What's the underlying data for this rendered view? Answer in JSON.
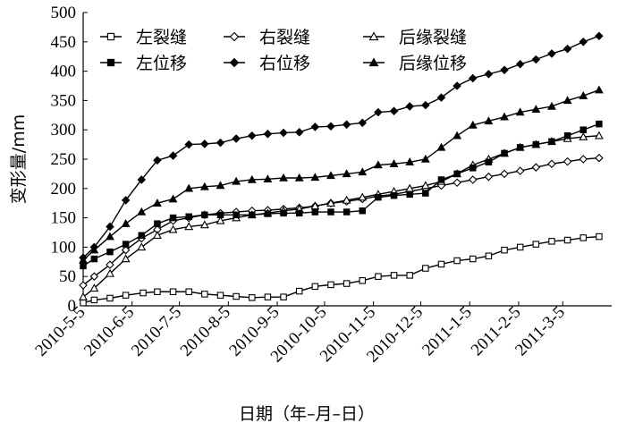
{
  "chart_data": {
    "type": "line",
    "xlabel": "日期（年–月–日）",
    "ylabel": "变形量/mm",
    "ylim": [
      0,
      500
    ],
    "yticks": [
      0,
      50,
      100,
      150,
      200,
      250,
      300,
      350,
      400,
      450,
      500
    ],
    "xlim": [
      "2010-05-05",
      "2011-04-05"
    ],
    "xticks": [
      "2010-5-5",
      "2010-6-5",
      "2010-7-5",
      "2010-8-5",
      "2010-9-5",
      "2010-10-5",
      "2010-11-5",
      "2010-12-5",
      "2011-1-5",
      "2011-2-5",
      "2011-3-5"
    ],
    "xtick_dates": [
      "2010-05-05",
      "2010-06-05",
      "2010-07-05",
      "2010-08-05",
      "2010-09-05",
      "2010-10-05",
      "2010-11-05",
      "2010-12-05",
      "2011-01-05",
      "2011-02-05",
      "2011-03-05"
    ],
    "legend_position": "top",
    "grid": false,
    "series": [
      {
        "name": "左裂缝",
        "marker": "square-open",
        "x": [
          "2010-05-05",
          "2010-05-12",
          "2010-05-22",
          "2010-06-01",
          "2010-06-12",
          "2010-06-21",
          "2010-07-01",
          "2010-07-11",
          "2010-07-21",
          "2010-07-31",
          "2010-08-10",
          "2010-08-20",
          "2010-08-30",
          "2010-09-09",
          "2010-09-19",
          "2010-09-29",
          "2010-10-09",
          "2010-10-19",
          "2010-10-29",
          "2010-11-08",
          "2010-11-18",
          "2010-11-28",
          "2010-12-08",
          "2010-12-18",
          "2010-12-28",
          "2011-01-07",
          "2011-01-17",
          "2011-01-27",
          "2011-02-06",
          "2011-02-16",
          "2011-02-26",
          "2011-03-08",
          "2011-03-18",
          "2011-03-28"
        ],
        "values": [
          5,
          10,
          13,
          18,
          22,
          24,
          24,
          24,
          20,
          18,
          16,
          14,
          15,
          15,
          25,
          33,
          36,
          38,
          43,
          50,
          52,
          52,
          64,
          71,
          77,
          80,
          85,
          95,
          100,
          105,
          110,
          112,
          116,
          118
        ]
      },
      {
        "name": "右裂缝",
        "marker": "diamond-open",
        "x": [
          "2010-05-05",
          "2010-05-12",
          "2010-05-22",
          "2010-06-01",
          "2010-06-11",
          "2010-06-21",
          "2010-07-01",
          "2010-07-11",
          "2010-07-21",
          "2010-07-31",
          "2010-08-10",
          "2010-08-20",
          "2010-08-30",
          "2010-09-09",
          "2010-09-19",
          "2010-09-29",
          "2010-10-09",
          "2010-10-19",
          "2010-10-29",
          "2010-11-08",
          "2010-11-18",
          "2010-11-28",
          "2010-12-08",
          "2010-12-18",
          "2010-12-28",
          "2011-01-07",
          "2011-01-17",
          "2011-01-27",
          "2011-02-06",
          "2011-02-16",
          "2011-02-26",
          "2011-03-08",
          "2011-03-18",
          "2011-03-28"
        ],
        "values": [
          35,
          50,
          70,
          95,
          115,
          130,
          145,
          150,
          155,
          158,
          160,
          162,
          163,
          165,
          167,
          170,
          175,
          178,
          182,
          187,
          190,
          195,
          200,
          205,
          210,
          215,
          220,
          225,
          230,
          236,
          242,
          246,
          250,
          252
        ]
      },
      {
        "name": "后缘裂缝",
        "marker": "triangle-open",
        "x": [
          "2010-05-05",
          "2010-05-12",
          "2010-05-22",
          "2010-06-01",
          "2010-06-11",
          "2010-06-21",
          "2010-07-01",
          "2010-07-11",
          "2010-07-21",
          "2010-07-31",
          "2010-08-10",
          "2010-08-20",
          "2010-08-30",
          "2010-09-09",
          "2010-09-19",
          "2010-09-29",
          "2010-10-09",
          "2010-10-19",
          "2010-10-29",
          "2010-11-08",
          "2010-11-18",
          "2010-11-28",
          "2010-12-08",
          "2010-12-18",
          "2010-12-28",
          "2011-01-07",
          "2011-01-17",
          "2011-01-27",
          "2011-02-06",
          "2011-02-16",
          "2011-02-26",
          "2011-03-08",
          "2011-03-18",
          "2011-03-28"
        ],
        "values": [
          15,
          30,
          55,
          80,
          100,
          120,
          130,
          135,
          138,
          145,
          150,
          155,
          158,
          162,
          165,
          170,
          175,
          180,
          185,
          190,
          195,
          200,
          205,
          212,
          225,
          240,
          250,
          260,
          270,
          275,
          280,
          285,
          288,
          290
        ]
      },
      {
        "name": "左位移",
        "marker": "square-filled",
        "x": [
          "2010-05-05",
          "2010-05-12",
          "2010-05-22",
          "2010-06-01",
          "2010-06-11",
          "2010-06-21",
          "2010-07-01",
          "2010-07-11",
          "2010-07-21",
          "2010-07-31",
          "2010-08-10",
          "2010-08-20",
          "2010-08-30",
          "2010-09-09",
          "2010-09-19",
          "2010-09-29",
          "2010-10-09",
          "2010-10-19",
          "2010-10-29",
          "2010-11-08",
          "2010-11-18",
          "2010-11-28",
          "2010-12-08",
          "2010-12-18",
          "2010-12-28",
          "2011-01-07",
          "2011-01-17",
          "2011-01-27",
          "2011-02-06",
          "2011-02-16",
          "2011-02-26",
          "2011-03-08",
          "2011-03-18",
          "2011-03-28"
        ],
        "values": [
          68,
          80,
          92,
          105,
          120,
          140,
          150,
          152,
          155,
          155,
          155,
          155,
          157,
          158,
          158,
          160,
          160,
          160,
          162,
          185,
          188,
          190,
          192,
          215,
          225,
          235,
          245,
          260,
          270,
          275,
          280,
          290,
          300,
          310
        ]
      },
      {
        "name": "右位移",
        "marker": "diamond-filled",
        "x": [
          "2010-05-05",
          "2010-05-12",
          "2010-05-22",
          "2010-06-01",
          "2010-06-11",
          "2010-06-21",
          "2010-07-01",
          "2010-07-11",
          "2010-07-21",
          "2010-07-31",
          "2010-08-10",
          "2010-08-20",
          "2010-08-30",
          "2010-09-09",
          "2010-09-19",
          "2010-09-29",
          "2010-10-09",
          "2010-10-19",
          "2010-10-29",
          "2010-11-08",
          "2010-11-18",
          "2010-11-28",
          "2010-12-08",
          "2010-12-18",
          "2010-12-28",
          "2011-01-07",
          "2011-01-17",
          "2011-01-27",
          "2011-02-06",
          "2011-02-16",
          "2011-02-26",
          "2011-03-08",
          "2011-03-18",
          "2011-03-28"
        ],
        "values": [
          82,
          100,
          135,
          180,
          215,
          248,
          256,
          275,
          276,
          278,
          285,
          290,
          293,
          295,
          296,
          305,
          306,
          309,
          312,
          330,
          332,
          340,
          342,
          355,
          375,
          388,
          395,
          402,
          412,
          420,
          430,
          438,
          450,
          460
        ]
      },
      {
        "name": "后缘位移",
        "marker": "triangle-filled",
        "x": [
          "2010-05-05",
          "2010-05-12",
          "2010-05-22",
          "2010-06-01",
          "2010-06-11",
          "2010-06-21",
          "2010-07-01",
          "2010-07-11",
          "2010-07-21",
          "2010-07-31",
          "2010-08-10",
          "2010-08-20",
          "2010-08-30",
          "2010-09-09",
          "2010-09-19",
          "2010-09-29",
          "2010-10-09",
          "2010-10-19",
          "2010-10-29",
          "2010-11-08",
          "2010-11-18",
          "2010-11-28",
          "2010-12-08",
          "2010-12-18",
          "2010-12-28",
          "2011-01-07",
          "2011-01-17",
          "2011-01-27",
          "2011-02-06",
          "2011-02-16",
          "2011-02-26",
          "2011-03-08",
          "2011-03-18",
          "2011-03-28"
        ],
        "values": [
          78,
          95,
          118,
          140,
          160,
          175,
          182,
          200,
          203,
          205,
          212,
          215,
          216,
          218,
          218,
          219,
          222,
          225,
          228,
          240,
          242,
          245,
          250,
          270,
          290,
          308,
          315,
          322,
          330,
          335,
          340,
          350,
          358,
          368
        ]
      }
    ]
  }
}
